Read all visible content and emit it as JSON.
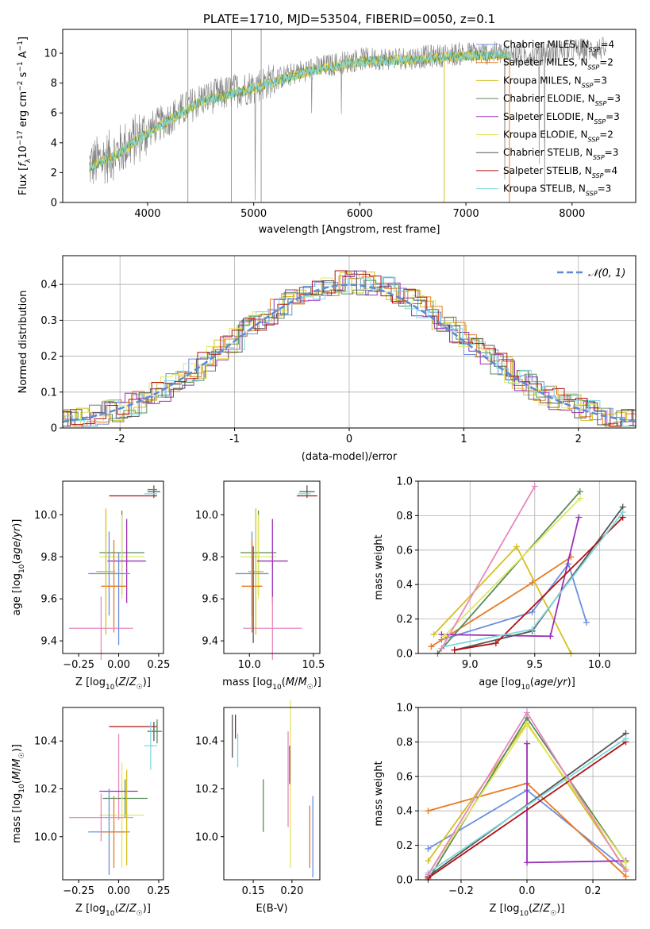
{
  "title": "PLATE=1710, MJD=53504, FIBERID=0050, z=0.1",
  "colors": [
    "#6b8fe0",
    "#e87a20",
    "#d4c020",
    "#5a8a5a",
    "#9a30b8",
    "#e0e860",
    "#555555",
    "#b01010",
    "#80d8e0",
    "#e888c0"
  ],
  "chart_data": [
    {
      "id": "spectrum",
      "type": "line",
      "xlabel": "wavelength [Angstrom, rest frame]",
      "ylabel": "Flux [f_λ10^-17 erg cm^-2 s^-1 A^-1]",
      "xlim": [
        3200,
        8600
      ],
      "ylim": [
        0,
        11.6
      ],
      "xticks": [
        4000,
        5000,
        6000,
        7000,
        8000
      ],
      "yticks": [
        0,
        2,
        4,
        6,
        8,
        10
      ],
      "legend": "top-right",
      "series": [
        {
          "name": "Chabrier MILES, N_SSP=4"
        },
        {
          "name": "Salpeter MILES, N_SSP=2"
        },
        {
          "name": "Kroupa MILES, N_SSP=3"
        },
        {
          "name": "Chabrier ELODIE, N_SSP=3"
        },
        {
          "name": "Salpeter ELODIE, N_SSP=3"
        },
        {
          "name": "Kroupa ELODIE, N_SSP=2"
        },
        {
          "name": "Chabrier STELIB, N_SSP=3"
        },
        {
          "name": "Salpeter STELIB, N_SSP=4"
        },
        {
          "name": "Kroupa STELIB, N_SSP=3"
        }
      ],
      "continuum": {
        "x": [
          3450,
          3700,
          4000,
          4500,
          5000,
          5500,
          6000,
          6500,
          7000,
          7400,
          7600,
          8000,
          8300
        ],
        "y": [
          2.5,
          3.3,
          4.8,
          6.9,
          7.8,
          8.9,
          9.6,
          9.7,
          10.0,
          10.0,
          9.9,
          10.2,
          10.3
        ]
      }
    },
    {
      "id": "residuals",
      "type": "histogram",
      "xlabel": "(data-model)/error",
      "ylabel": "Normed distribution",
      "xlim": [
        -2.5,
        2.5
      ],
      "ylim": [
        0,
        0.48
      ],
      "xticks": [
        -2,
        -1,
        0,
        1,
        2
      ],
      "yticks": [
        0.0,
        0.1,
        0.2,
        0.3,
        0.4
      ],
      "legend": "top-right",
      "gaussian_label": "𝒩(0, 1)"
    },
    {
      "id": "z-age",
      "type": "errorbar",
      "xlabel": "Z [log10(Z/Z☉)]",
      "ylabel": "age  [log10(age/yr)]",
      "xlim": [
        -0.35,
        0.28
      ],
      "ylim": [
        9.34,
        10.16
      ],
      "xticks": [
        -0.25,
        0,
        0.25
      ],
      "xtick_labels": [
        "−0.25",
        "0.00",
        "0.25"
      ],
      "yticks": [
        9.4,
        9.6,
        9.8,
        10.0
      ],
      "ytick_labels": [
        "9.4",
        "9.6",
        "9.8",
        "10.0"
      ]
    },
    {
      "id": "mass-age",
      "type": "errorbar",
      "xlabel": "mass [log10(M/M☉)]",
      "ylabel": "",
      "xlim": [
        9.8,
        10.55
      ],
      "ylim": [
        9.34,
        10.16
      ],
      "xticks": [
        10.0,
        10.5
      ],
      "xtick_labels": [
        "10.0",
        "10.5"
      ],
      "yticks": [
        9.4,
        9.6,
        9.8,
        10.0
      ],
      "ytick_labels": [
        "9.4",
        "9.6",
        "9.8",
        "10.0"
      ]
    },
    {
      "id": "age-weight",
      "type": "line",
      "xlabel": "age  [log10(age/yr)]",
      "ylabel": "mass weight",
      "xlim": [
        8.6,
        10.28
      ],
      "ylim": [
        0,
        1.0
      ],
      "xticks": [
        9.0,
        9.5,
        10.0
      ],
      "xtick_labels": [
        "9.0",
        "9.5",
        "10.0"
      ],
      "yticks": [
        0,
        0.2,
        0.4,
        0.6,
        0.8,
        1.0
      ],
      "ytick_labels": [
        "0.0",
        "0.2",
        "0.4",
        "0.6",
        "0.8",
        "1.0"
      ],
      "series": [
        {
          "x": [
            8.78,
            9.48,
            9.76,
            9.9
          ],
          "y": [
            0.08,
            0.24,
            0.52,
            0.18
          ]
        },
        {
          "x": [
            8.7,
            9.48,
            9.78
          ],
          "y": [
            0.04,
            0.41,
            0.56
          ]
        },
        {
          "x": [
            8.72,
            9.36,
            9.78
          ],
          "y": [
            0.11,
            0.62,
            0.0
          ]
        },
        {
          "x": [
            8.75,
            9.85
          ],
          "y": [
            0.0,
            0.94
          ]
        },
        {
          "x": [
            8.78,
            9.62,
            9.84
          ],
          "y": [
            0.11,
            0.1,
            0.79
          ]
        },
        {
          "x": [
            8.8,
            9.85
          ],
          "y": [
            0.1,
            0.9
          ]
        },
        {
          "x": [
            8.88,
            9.48,
            10.18
          ],
          "y": [
            0.02,
            0.13,
            0.85
          ]
        },
        {
          "x": [
            8.88,
            9.2,
            10.18
          ],
          "y": [
            0.02,
            0.06,
            0.79
          ]
        },
        {
          "x": [
            8.8,
            9.48,
            10.18
          ],
          "y": [
            0.04,
            0.14,
            0.82
          ]
        },
        {
          "x": [
            8.78,
            9.5
          ],
          "y": [
            0.03,
            0.97
          ]
        }
      ]
    },
    {
      "id": "z-mass",
      "type": "errorbar",
      "xlabel": "Z [log10(Z/Z☉)]",
      "ylabel": "mass [log10(M/M☉)]",
      "xlim": [
        -0.35,
        0.28
      ],
      "ylim": [
        9.82,
        10.54
      ],
      "xticks": [
        -0.25,
        0,
        0.25
      ],
      "xtick_labels": [
        "−0.25",
        "0.00",
        "0.25"
      ],
      "yticks": [
        10.0,
        10.2,
        10.4
      ],
      "ytick_labels": [
        "10.0",
        "10.2",
        "10.4"
      ]
    },
    {
      "id": "ebv-mass",
      "type": "errorbar",
      "xlabel": "E(B-V)",
      "ylabel": "",
      "xlim": [
        0.112,
        0.236
      ],
      "ylim": [
        9.82,
        10.54
      ],
      "xticks": [
        0.15,
        0.2
      ],
      "xtick_labels": [
        "0.15",
        "0.20"
      ],
      "yticks": [
        10.0,
        10.2,
        10.4
      ],
      "ytick_labels": [
        "10.0",
        "10.2",
        "10.4"
      ]
    },
    {
      "id": "z-weight",
      "type": "line",
      "xlabel": "Z [log10(Z/Z☉)]",
      "ylabel": "mass weight",
      "xlim": [
        -0.33,
        0.33
      ],
      "ylim": [
        0,
        1.0
      ],
      "xticks": [
        -0.2,
        0,
        0.2
      ],
      "xtick_labels": [
        "−0.2",
        "0.0",
        "0.2"
      ],
      "yticks": [
        0,
        0.2,
        0.4,
        0.6,
        0.8,
        1.0
      ],
      "ytick_labels": [
        "0.0",
        "0.2",
        "0.4",
        "0.6",
        "0.8",
        "1.0"
      ],
      "series": [
        {
          "x": [
            -0.3,
            0.0,
            0.3
          ],
          "y": [
            0.18,
            0.52,
            0.06
          ]
        },
        {
          "x": [
            -0.3,
            0.0,
            0.3
          ],
          "y": [
            0.4,
            0.56,
            0.02
          ]
        },
        {
          "x": [
            -0.3,
            0.0,
            0.3
          ],
          "y": [
            0.11,
            0.91,
            0.06
          ]
        },
        {
          "x": [
            -0.3,
            0.0,
            0.3
          ],
          "y": [
            0.0,
            0.94,
            0.1
          ]
        },
        {
          "x": [
            0.0,
            0.0,
            0.3
          ],
          "y": [
            0.79,
            0.1,
            0.11
          ]
        },
        {
          "x": [
            -0.3,
            0.0,
            0.3
          ],
          "y": [
            0.03,
            0.9,
            0.1
          ]
        },
        {
          "x": [
            -0.3,
            0.3
          ],
          "y": [
            0.02,
            0.85
          ]
        },
        {
          "x": [
            -0.3,
            0.3
          ],
          "y": [
            0.01,
            0.8
          ]
        },
        {
          "x": [
            -0.3,
            0.3
          ],
          "y": [
            0.04,
            0.82
          ]
        },
        {
          "x": [
            -0.3,
            0.0,
            0.3
          ],
          "y": [
            0.03,
            0.97,
            0.05
          ]
        }
      ]
    }
  ]
}
